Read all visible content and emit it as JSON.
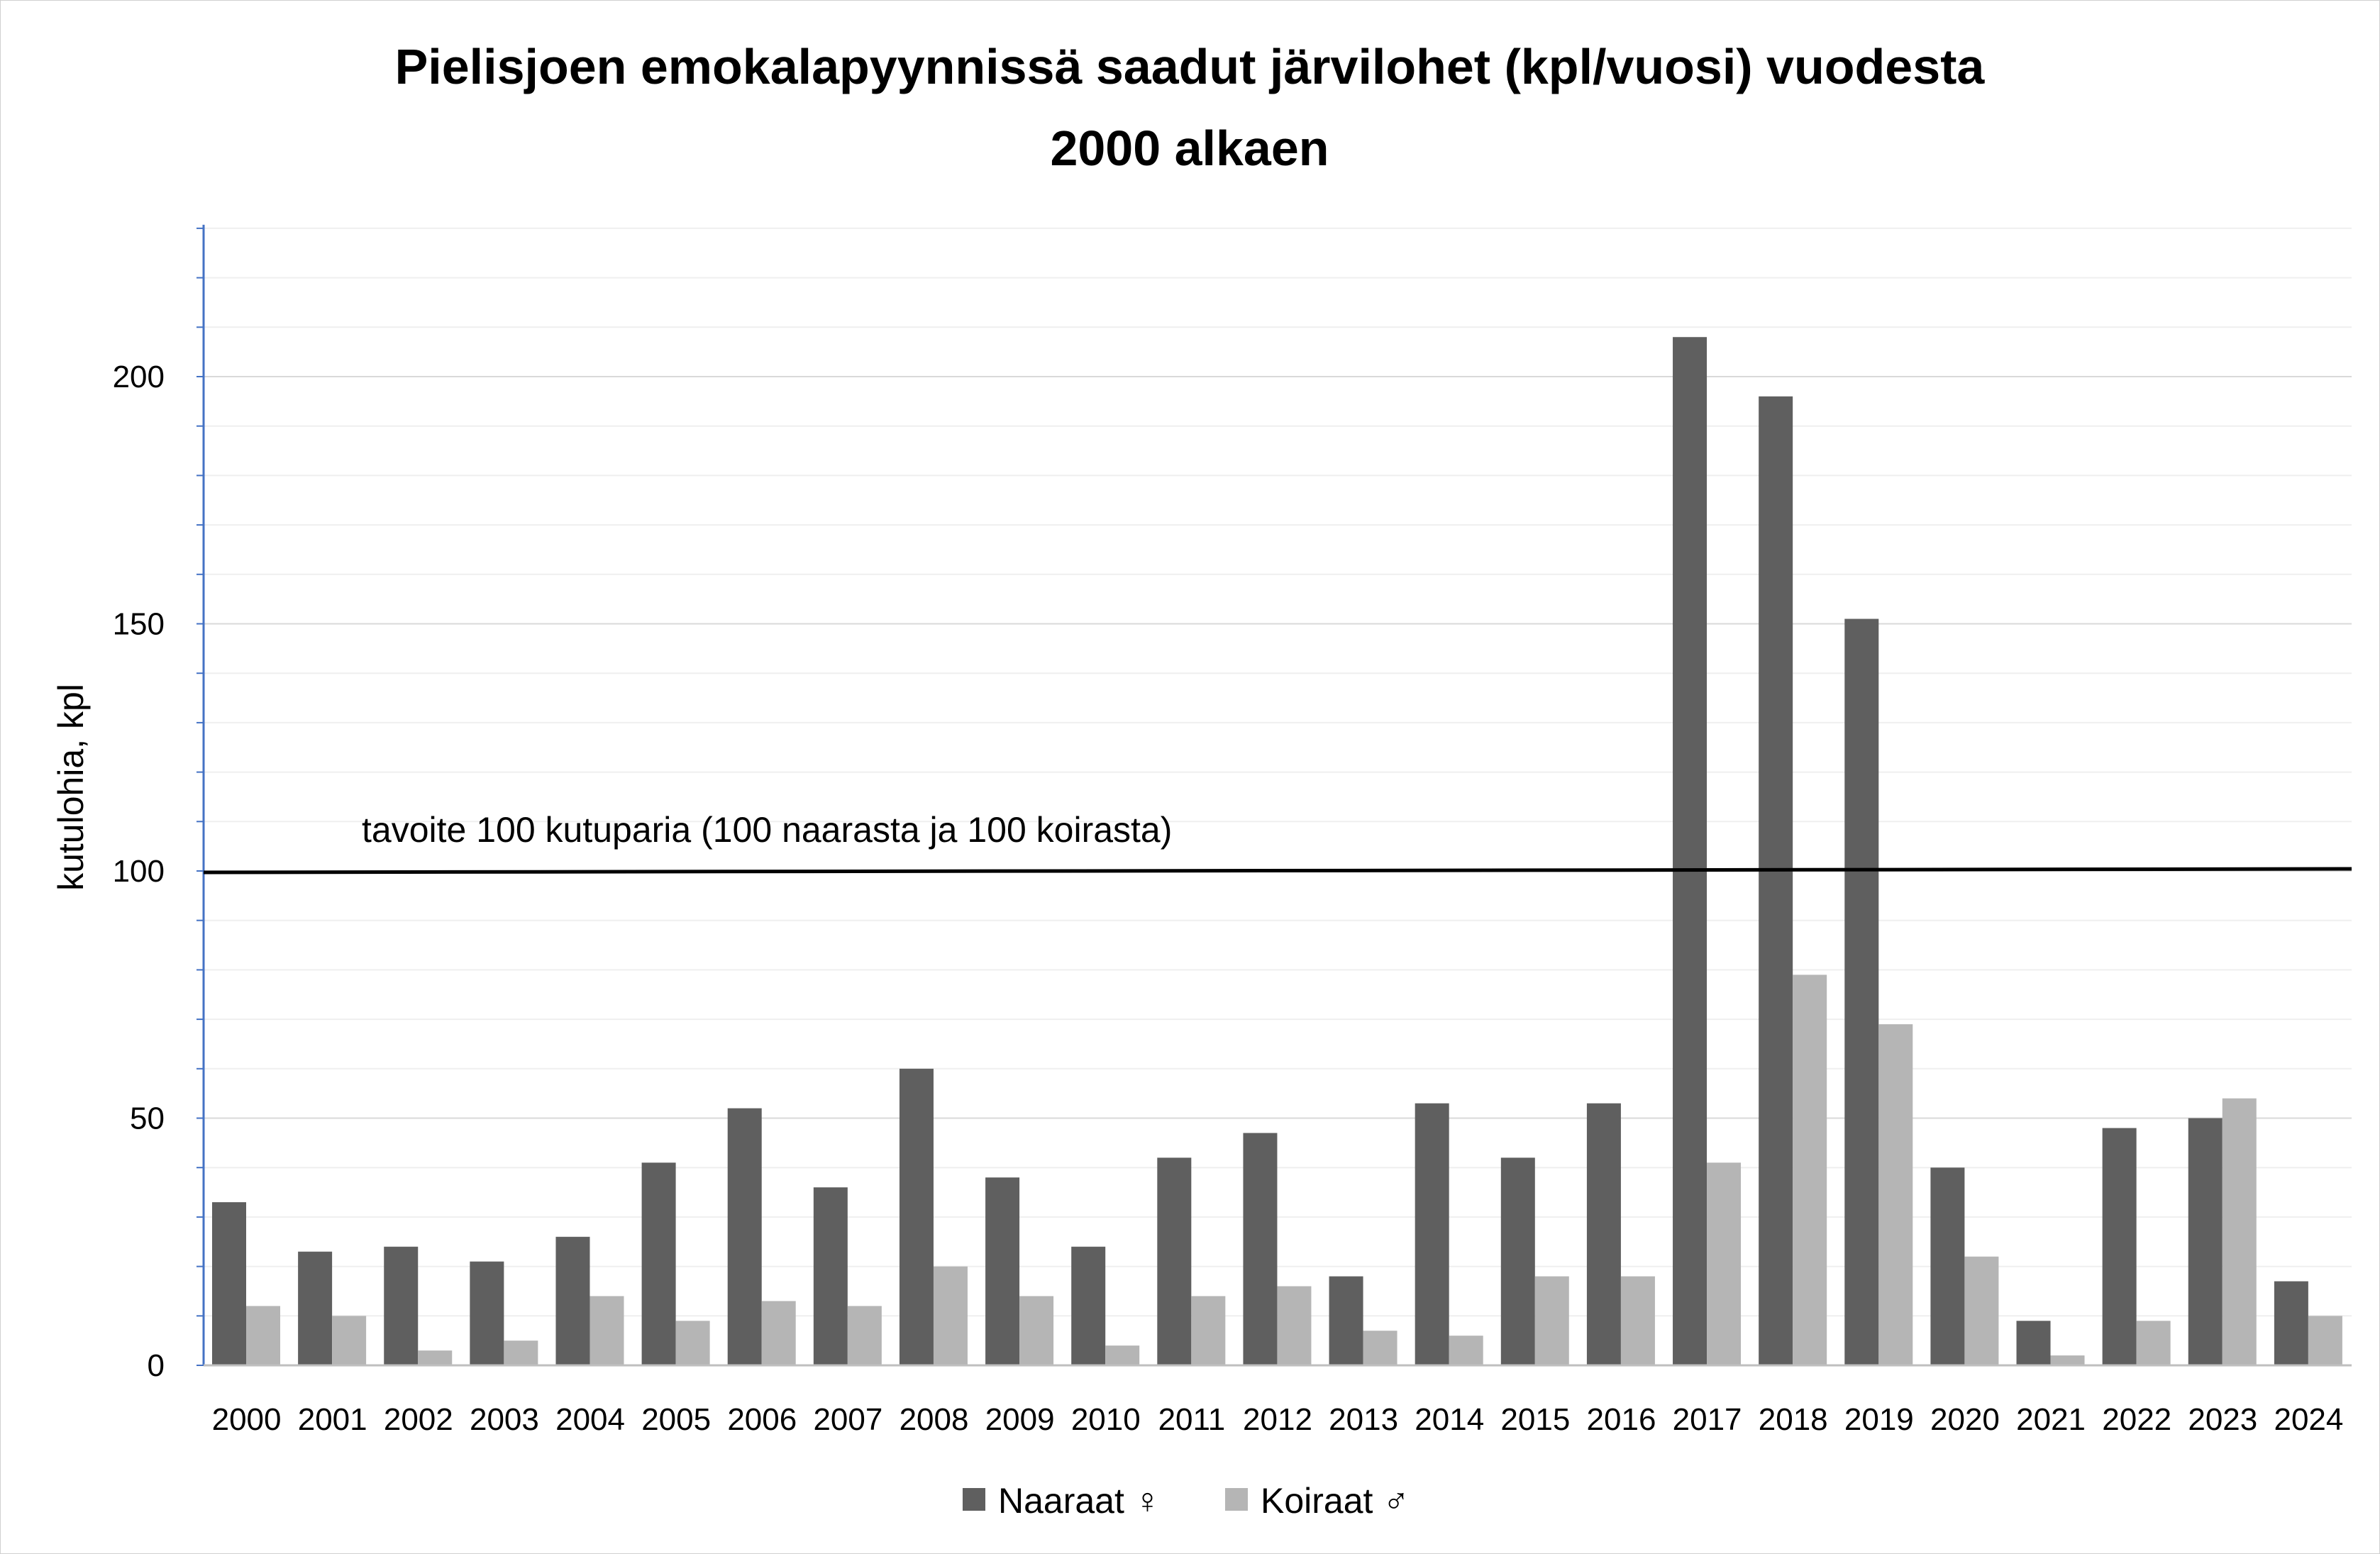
{
  "chart_data": {
    "type": "bar",
    "title_lines": [
      "Pielisjoen emokalapyynnissä saadut järvilohet (kpl/vuosi) vuodesta",
      "2000 alkaen"
    ],
    "ylabel": "kutulohia, kpl",
    "xlabel": "",
    "ylim": [
      0,
      230
    ],
    "yticks": [
      0,
      50,
      100,
      150,
      200
    ],
    "ytick_labels": [
      "0",
      "50",
      "100",
      "150",
      "200"
    ],
    "grid": true,
    "legend_position": "bottom",
    "categories": [
      "2000",
      "2001",
      "2002",
      "2003",
      "2004",
      "2005",
      "2006",
      "2007",
      "2008",
      "2009",
      "2010",
      "2011",
      "2012",
      "2013",
      "2014",
      "2015",
      "2016",
      "2017",
      "2018",
      "2019",
      "2020",
      "2021",
      "2022",
      "2023",
      "2024"
    ],
    "series": [
      {
        "name": "Naaraat ♀",
        "color": "#5f5f5f",
        "values": [
          33,
          23,
          24,
          21,
          26,
          41,
          52,
          36,
          60,
          38,
          24,
          42,
          47,
          18,
          53,
          42,
          53,
          208,
          196,
          151,
          40,
          9,
          48,
          50,
          17
        ]
      },
      {
        "name": "Koiraat ♂",
        "color": "#b5b5b5",
        "values": [
          12,
          10,
          3,
          5,
          14,
          9,
          13,
          12,
          20,
          14,
          4,
          14,
          16,
          7,
          6,
          18,
          18,
          41,
          79,
          69,
          22,
          2,
          9,
          54,
          10
        ]
      }
    ],
    "target_line": {
      "value": 100,
      "label": "tavoite 100 kutuparia (100 naarasta ja 100 koirasta)"
    }
  },
  "colors": {
    "axis": "#4472c4",
    "grid": "#d9d9d9",
    "minor_grid": "#efefef",
    "target_line": "#000000"
  }
}
